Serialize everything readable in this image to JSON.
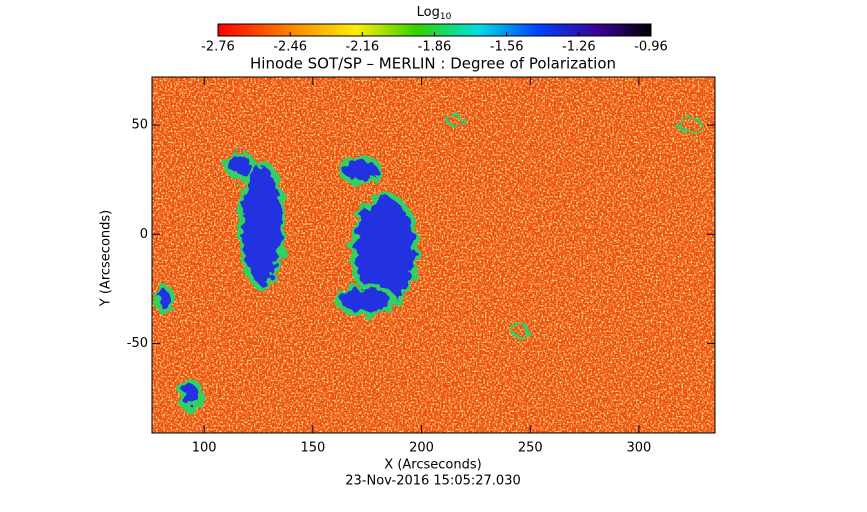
{
  "chart_data": {
    "type": "image",
    "title": "Hinode SOT/SP – MERLIN : Degree of Polarization",
    "colorbar": {
      "label": "Log",
      "label_subscript": "10",
      "clim": [
        -2.76,
        -0.96
      ],
      "ticks": [
        -2.76,
        -2.46,
        -2.16,
        -1.86,
        -1.56,
        -1.26,
        -0.96
      ]
    },
    "x_label": "X (Arcseconds)",
    "y_label": "Y (Arcseconds)",
    "xlim": [
      76,
      335
    ],
    "xticks": [
      100,
      150,
      200,
      250,
      300
    ],
    "ylim": [
      -91,
      72
    ],
    "yticks": [
      -50,
      0,
      50
    ],
    "footer": "23-Nov-2016 15:05:27.030"
  }
}
